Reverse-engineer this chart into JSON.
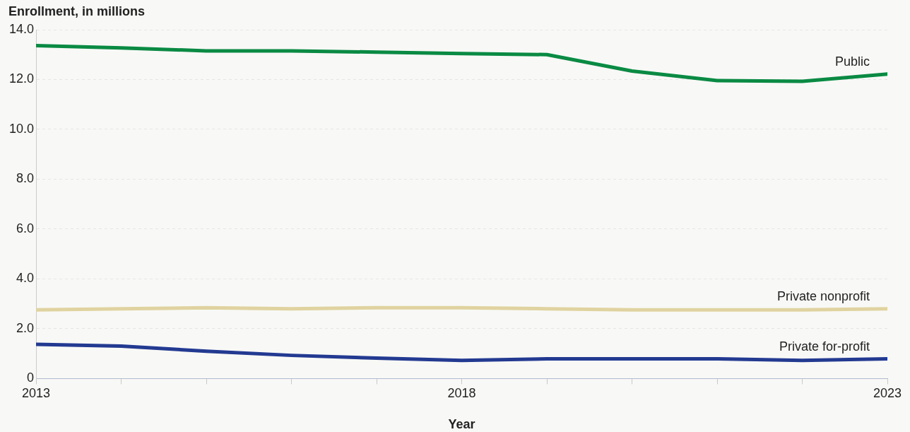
{
  "chart_data": {
    "type": "line",
    "ylabel": "Enrollment, in millions",
    "xlabel": "Year",
    "x": [
      2013,
      2014,
      2015,
      2016,
      2017,
      2018,
      2019,
      2020,
      2021,
      2022,
      2023
    ],
    "xlim": [
      2013,
      2023
    ],
    "xticks": [
      2013,
      {
        "value": 2014,
        "label": null
      },
      {
        "value": 2015,
        "label": null
      },
      {
        "value": 2016,
        "label": null
      },
      {
        "value": 2017,
        "label": null
      },
      2018,
      {
        "value": 2019,
        "label": null
      },
      {
        "value": 2020,
        "label": null
      },
      {
        "value": 2021,
        "label": null
      },
      {
        "value": 2022,
        "label": null
      },
      2023
    ],
    "ylim": [
      0,
      14
    ],
    "yticks": [
      {
        "value": 0,
        "label": "0"
      },
      {
        "value": 2,
        "label": "2.0"
      },
      {
        "value": 4,
        "label": "4.0"
      },
      {
        "value": 6,
        "label": "6.0"
      },
      {
        "value": 8,
        "label": "8.0"
      },
      {
        "value": 10,
        "label": "10.0"
      },
      {
        "value": 12,
        "label": "12.0"
      },
      {
        "value": 14,
        "label": "14.0"
      }
    ],
    "grid": "y",
    "legend": false,
    "marker": "none",
    "line_style": "solid",
    "series": [
      {
        "name": "Public",
        "color": "#0a8a43",
        "values": [
          13.36,
          13.27,
          13.15,
          13.15,
          13.1,
          13.04,
          13.0,
          12.34,
          11.96,
          11.93,
          12.22
        ]
      },
      {
        "name": "Private nonprofit",
        "color": "#e0d3a0",
        "values": [
          2.76,
          2.8,
          2.84,
          2.8,
          2.84,
          2.84,
          2.8,
          2.76,
          2.76,
          2.76,
          2.8
        ]
      },
      {
        "name": "Private for-profit",
        "color": "#233a91",
        "values": [
          1.37,
          1.3,
          1.1,
          0.93,
          0.82,
          0.73,
          0.79,
          0.79,
          0.79,
          0.73,
          0.79
        ]
      }
    ]
  }
}
